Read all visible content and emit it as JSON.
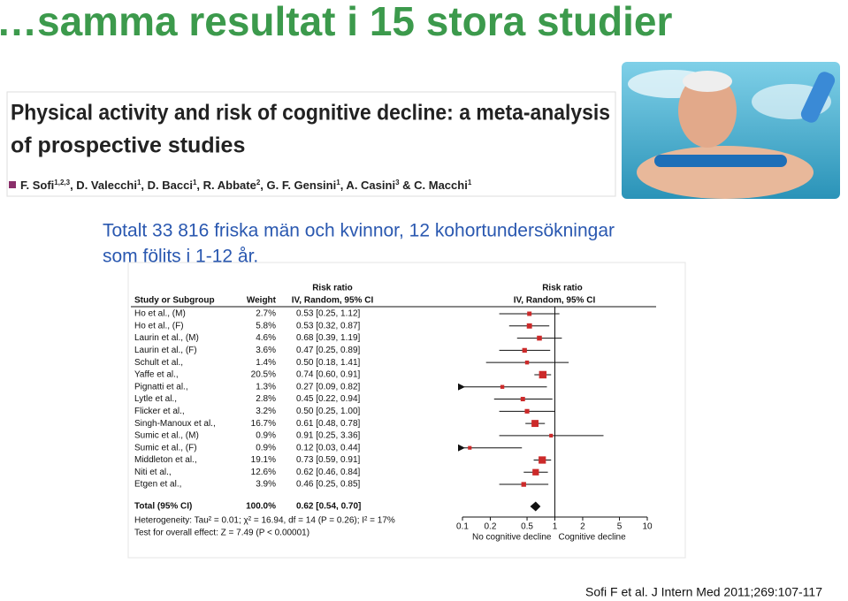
{
  "slide_title": "…samma resultat i 15 stora studier",
  "paper": {
    "title_lines": [
      "Physical activity and risk of cognitive decline: a meta-analysis",
      "of prospective studies"
    ],
    "authors": [
      {
        "name": "F. Sofi",
        "sup": "1,2,3"
      },
      {
        "name": ", D. Valecchi",
        "sup": "1"
      },
      {
        "name": ", D. Bacci",
        "sup": "1"
      },
      {
        "name": ", R. Abbate",
        "sup": "2"
      },
      {
        "name": ", G. F. Gensini",
        "sup": "1"
      },
      {
        "name": ", A. Casini",
        "sup": "3"
      },
      {
        "name": " & C. Macchi",
        "sup": "1"
      }
    ]
  },
  "description_lines": [
    "Totalt 33 816 friska män och kvinnor, 12 kohortundersökningar",
    "som följts i 1-12 år."
  ],
  "citation": "Sofi F et al. J Intern Med 2011;269:107-117",
  "chart_data": {
    "type": "forest",
    "study_header": "Study or Subgroup",
    "weight_header": "Weight",
    "plot_title": "Risk ratio",
    "method": "IV, Random, 95% CI",
    "categories": [
      "Ho et al., (M)",
      "Ho et al., (F)",
      "Laurin et al., (M)",
      "Laurin et al., (F)",
      "Schult et al.,",
      "Yaffe et al.,",
      "Pignatti et al.,",
      "Lytle et al.,",
      "Flicker et al.,",
      "Singh-Manoux et al.,",
      "Sumic et al., (M)",
      "Sumic et al., (F)",
      "Middleton et al.,",
      "Niti et al.,",
      "Etgen et al.,"
    ],
    "weights": [
      2.7,
      5.8,
      4.6,
      3.6,
      1.4,
      20.5,
      1.3,
      2.8,
      3.2,
      16.7,
      0.9,
      0.9,
      19.1,
      12.6,
      3.9
    ],
    "weight_labels": [
      "2.7%",
      "5.8%",
      "4.6%",
      "3.6%",
      "1.4%",
      "20.5%",
      "1.3%",
      "2.8%",
      "3.2%",
      "16.7%",
      "0.9%",
      "0.9%",
      "19.1%",
      "12.6%",
      "3.9%"
    ],
    "values": [
      0.53,
      0.53,
      0.68,
      0.47,
      0.5,
      0.74,
      0.27,
      0.45,
      0.5,
      0.61,
      0.91,
      0.12,
      0.73,
      0.62,
      0.46
    ],
    "ci_low": [
      0.25,
      0.32,
      0.39,
      0.25,
      0.18,
      0.6,
      0.09,
      0.22,
      0.25,
      0.48,
      0.25,
      0.03,
      0.59,
      0.46,
      0.25
    ],
    "ci_high": [
      1.12,
      0.87,
      1.19,
      0.89,
      1.41,
      0.91,
      0.82,
      0.94,
      1.0,
      0.78,
      3.36,
      0.44,
      0.91,
      0.84,
      0.85
    ],
    "value_labels": [
      "0.53 [0.25, 1.12]",
      "0.53 [0.32, 0.87]",
      "0.68 [0.39, 1.19]",
      "0.47 [0.25, 0.89]",
      "0.50 [0.18, 1.41]",
      "0.74 [0.60, 0.91]",
      "0.27 [0.09, 0.82]",
      "0.45 [0.22, 0.94]",
      "0.50 [0.25, 1.00]",
      "0.61 [0.48, 0.78]",
      "0.91 [0.25, 3.36]",
      "0.12 [0.03, 0.44]",
      "0.73 [0.59, 0.91]",
      "0.62 [0.46, 0.84]",
      "0.46 [0.25, 0.85]"
    ],
    "color": "#cc2a2a",
    "total": {
      "label": "Total (95% CI)",
      "weight": 100.0,
      "weight_label": "100.0%",
      "value": 0.62,
      "ci_low": 0.54,
      "ci_high": 0.7,
      "value_label": "0.62 [0.54, 0.70]"
    },
    "heterogeneity": "Heterogeneity: Tau² = 0.01; χ² = 16.94, df = 14 (P = 0.26); I² = 17%",
    "overall_effect": "Test for overall effect: Z = 7.49 (P < 0.00001)",
    "log_scale": true,
    "xlim": [
      0.1,
      10
    ],
    "xticks": [
      0.1,
      0.2,
      0.5,
      1,
      2,
      5,
      10
    ],
    "xlabel_left": "No cognitive decline",
    "xlabel_right": "Cognitive decline"
  }
}
